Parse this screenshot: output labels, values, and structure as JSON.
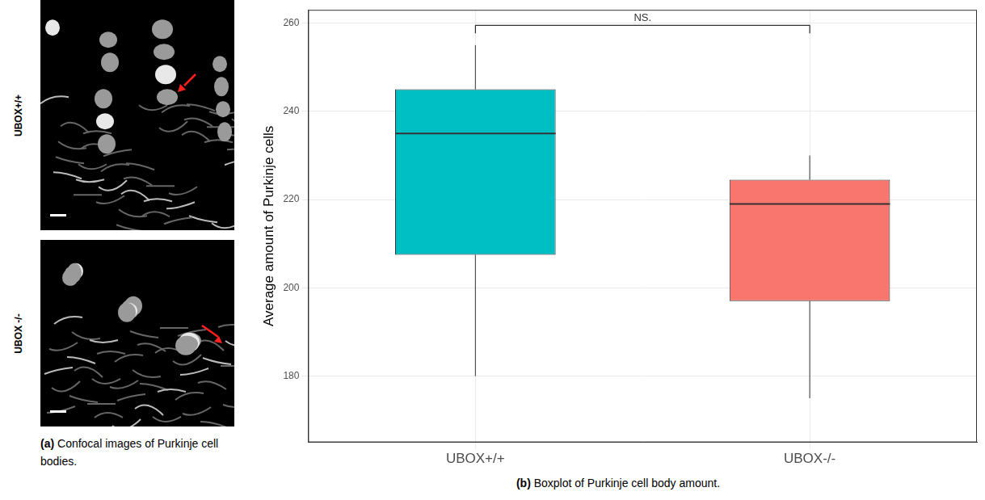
{
  "chart_data": {
    "type": "boxplot",
    "y_label": "Average amount of Purkinje cells",
    "categories": [
      "UBOX+/+",
      "UBOX-/-"
    ],
    "boxes": [
      {
        "min": 180,
        "q1": 207.5,
        "median": 235,
        "q3": 245,
        "max": 255
      },
      {
        "min": 175,
        "q1": 197,
        "median": 219,
        "q3": 224.5,
        "max": 230
      }
    ],
    "colors": [
      "#00bfc4",
      "#f8766d"
    ],
    "ylim": [
      165,
      263
    ],
    "yticks": [
      180,
      200,
      220,
      240,
      260
    ],
    "grid": true,
    "annotations": [
      {
        "text": "NS.",
        "y": 259.5,
        "from": "UBOX+/+",
        "to": "UBOX-/-"
      }
    ],
    "caption": "(b) Boxplot of Purkinje cell body amount."
  },
  "panel_a": {
    "caption": "(a) Confocal images of Purkinje cell bodies.",
    "rows": [
      "UBOX+/+",
      "UBOX -/-"
    ]
  }
}
